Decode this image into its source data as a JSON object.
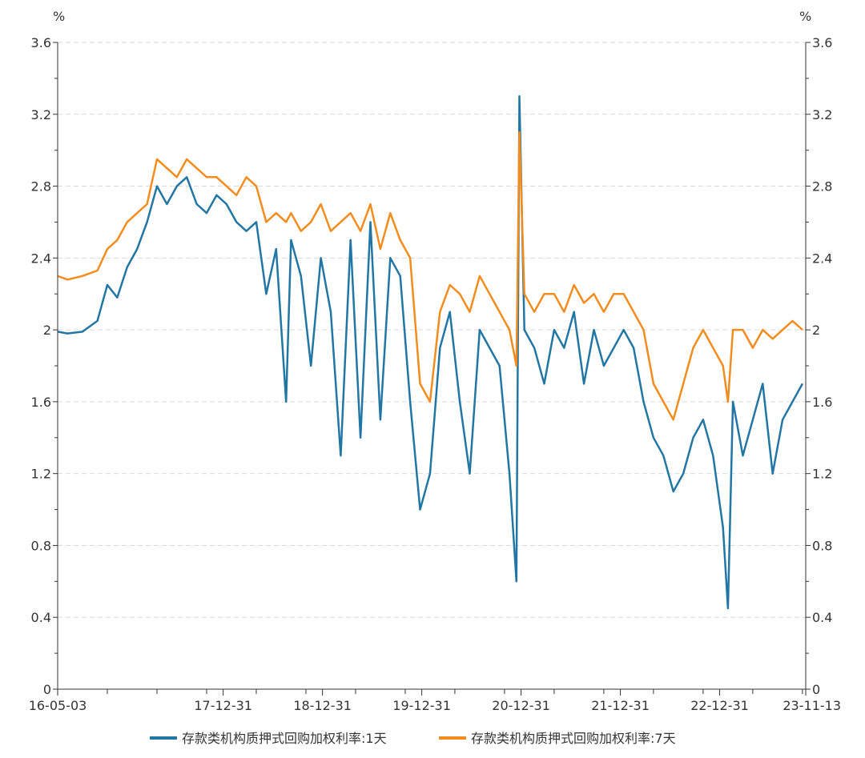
{
  "chart_data": {
    "type": "line",
    "title": "",
    "xlabel": "",
    "ylabel": "%",
    "ylabel_right": "%",
    "ylim": [
      0,
      3.6
    ],
    "yticks": [
      0,
      0.4,
      0.8,
      1.2,
      1.6,
      2,
      2.4,
      2.8,
      3.2,
      3.6
    ],
    "ytick_labels": [
      "0",
      "0.4",
      "0.8",
      "1.2",
      "1.6",
      "2",
      "2.4",
      "2.8",
      "3.2",
      "3.6"
    ],
    "x_start": "16-05-03",
    "x_end": "23-11-13",
    "xtick_labels": [
      "16-05-03",
      "17-12-31",
      "18-12-31",
      "19-12-31",
      "20-12-31",
      "21-12-31",
      "22-12-31",
      "23-11-13"
    ],
    "xtick_positions": [
      0,
      1.6667,
      2.6667,
      3.6667,
      4.6667,
      5.6667,
      6.6667,
      7.5333
    ],
    "x_unit": "years since 16-05-03",
    "grid": "horizontal dashed",
    "legend_position": "bottom",
    "series": [
      {
        "name": "存款类机构质押式回购加权利率:1天",
        "color": "#2176a4",
        "x": [
          0,
          0.1,
          0.25,
          0.4,
          0.5,
          0.6,
          0.7,
          0.8,
          0.9,
          1.0,
          1.1,
          1.2,
          1.3,
          1.4,
          1.5,
          1.6,
          1.7,
          1.8,
          1.9,
          2.0,
          2.1,
          2.2,
          2.3,
          2.35,
          2.45,
          2.55,
          2.65,
          2.75,
          2.85,
          2.95,
          3.05,
          3.15,
          3.25,
          3.35,
          3.45,
          3.55,
          3.65,
          3.75,
          3.85,
          3.95,
          4.05,
          4.15,
          4.25,
          4.35,
          4.45,
          4.55,
          4.62,
          4.65,
          4.7,
          4.8,
          4.9,
          5.0,
          5.1,
          5.2,
          5.3,
          5.4,
          5.5,
          5.6,
          5.7,
          5.8,
          5.9,
          6.0,
          6.1,
          6.2,
          6.3,
          6.4,
          6.5,
          6.6,
          6.7,
          6.75,
          6.8,
          6.9,
          7.0,
          7.1,
          7.2,
          7.3,
          7.4,
          7.5
        ],
        "values": [
          1.99,
          1.98,
          1.99,
          2.05,
          2.25,
          2.18,
          2.35,
          2.45,
          2.6,
          2.8,
          2.7,
          2.8,
          2.85,
          2.7,
          2.65,
          2.75,
          2.7,
          2.6,
          2.55,
          2.6,
          2.2,
          2.45,
          1.6,
          2.5,
          2.3,
          1.8,
          2.4,
          2.1,
          1.3,
          2.5,
          1.4,
          2.6,
          1.5,
          2.4,
          2.3,
          1.6,
          1.0,
          1.2,
          1.9,
          2.1,
          1.6,
          1.2,
          2.0,
          1.9,
          1.8,
          1.2,
          0.6,
          3.3,
          2.0,
          1.9,
          1.7,
          2.0,
          1.9,
          2.1,
          1.7,
          2.0,
          1.8,
          1.9,
          2.0,
          1.9,
          1.6,
          1.4,
          1.3,
          1.1,
          1.2,
          1.4,
          1.5,
          1.3,
          0.9,
          0.45,
          1.6,
          1.3,
          1.5,
          1.7,
          1.2,
          1.5,
          1.6,
          1.7
        ]
      },
      {
        "name": "存款类机构质押式回购加权利率:7天",
        "color": "#f28c1c",
        "x": [
          0,
          0.1,
          0.25,
          0.4,
          0.5,
          0.6,
          0.7,
          0.8,
          0.9,
          1.0,
          1.1,
          1.2,
          1.3,
          1.4,
          1.5,
          1.6,
          1.7,
          1.8,
          1.9,
          2.0,
          2.1,
          2.2,
          2.3,
          2.35,
          2.45,
          2.55,
          2.65,
          2.75,
          2.85,
          2.95,
          3.05,
          3.15,
          3.25,
          3.35,
          3.45,
          3.55,
          3.65,
          3.75,
          3.85,
          3.95,
          4.05,
          4.15,
          4.25,
          4.35,
          4.45,
          4.55,
          4.62,
          4.65,
          4.7,
          4.8,
          4.9,
          5.0,
          5.1,
          5.2,
          5.3,
          5.4,
          5.5,
          5.6,
          5.7,
          5.8,
          5.9,
          6.0,
          6.1,
          6.2,
          6.3,
          6.4,
          6.5,
          6.6,
          6.7,
          6.75,
          6.8,
          6.9,
          7.0,
          7.1,
          7.2,
          7.3,
          7.4,
          7.5
        ],
        "values": [
          2.3,
          2.28,
          2.3,
          2.33,
          2.45,
          2.5,
          2.6,
          2.65,
          2.7,
          2.95,
          2.9,
          2.85,
          2.95,
          2.9,
          2.85,
          2.85,
          2.8,
          2.75,
          2.85,
          2.8,
          2.6,
          2.65,
          2.6,
          2.65,
          2.55,
          2.6,
          2.7,
          2.55,
          2.6,
          2.65,
          2.55,
          2.7,
          2.45,
          2.65,
          2.5,
          2.4,
          1.7,
          1.6,
          2.1,
          2.25,
          2.2,
          2.1,
          2.3,
          2.2,
          2.1,
          2.0,
          1.8,
          3.1,
          2.2,
          2.1,
          2.2,
          2.2,
          2.1,
          2.25,
          2.15,
          2.2,
          2.1,
          2.2,
          2.2,
          2.1,
          2.0,
          1.7,
          1.6,
          1.5,
          1.7,
          1.9,
          2.0,
          1.9,
          1.8,
          1.6,
          2.0,
          2.0,
          1.9,
          2.0,
          1.95,
          2.0,
          2.05,
          2.0
        ]
      }
    ]
  }
}
